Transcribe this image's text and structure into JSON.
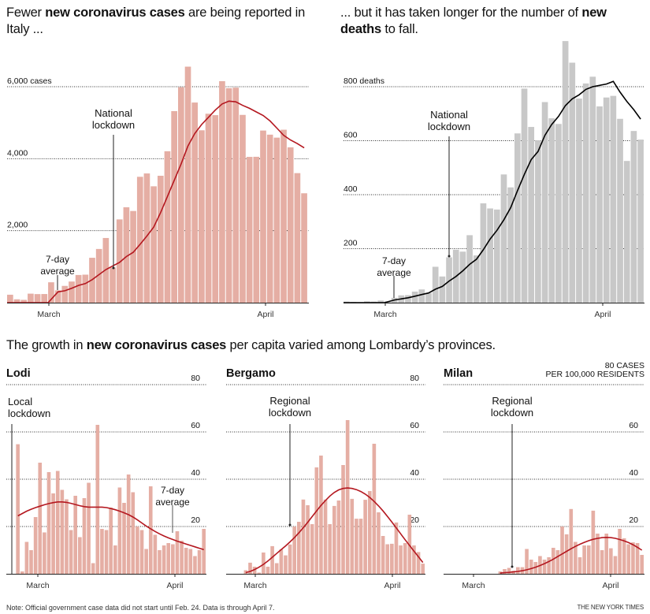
{
  "headline_top_left": {
    "pre": "Fewer ",
    "bold": "new coronavirus cases",
    "post": " are being reported in Italy ..."
  },
  "headline_top_right": {
    "pre": "... but it has taken longer for the number of ",
    "bold": "new deaths",
    "post": " to fall."
  },
  "headline_bottom": {
    "pre": "The growth in ",
    "bold": "new coronavirus cases",
    "post": " per capita varied among Lombardy’s provinces."
  },
  "note": "Note: Official government case data did not start until Feb. 24. Data is through April 7.",
  "credit": "THE NEW YORK TIMES",
  "colors": {
    "case_bar": "#e5aea4",
    "case_line": "#b4171f",
    "death_bar": "#c8c8c8",
    "death_line": "#000000",
    "grid": "#333333"
  },
  "chart_data": [
    {
      "id": "italy-cases",
      "type": "bar",
      "title": "Fewer new coronavirus cases are being reported in Italy ...",
      "xlabel": "",
      "ylabel": "cases",
      "start_date": "Feb 24",
      "end_date": "Apr 7",
      "ylim": [
        0,
        6600
      ],
      "yticks": [
        {
          "value": 2000,
          "label": "2,000"
        },
        {
          "value": 4000,
          "label": "4,000"
        },
        {
          "value": 6000,
          "label": "6,000 cases"
        }
      ],
      "xticks": [
        {
          "day": 6,
          "label": "March"
        },
        {
          "day": 37,
          "label": "April"
        }
      ],
      "values": [
        221,
        93,
        78,
        250,
        238,
        240,
        566,
        342,
        466,
        587,
        769,
        778,
        1247,
        1492,
        1797,
        977,
        2313,
        2651,
        2547,
        3497,
        3590,
        3233,
        3526,
        4207,
        5322,
        5986,
        6557,
        5560,
        4789,
        5249,
        5210,
        6153,
        5959,
        5974,
        5217,
        4050,
        4053,
        4782,
        4668,
        4585,
        4805,
        4316,
        3599,
        3039
      ],
      "series": [
        {
          "name": "7-day average",
          "values": [
            0,
            0,
            0,
            0,
            0,
            0,
            0,
            300,
            330,
            400,
            480,
            530,
            640,
            780,
            920,
            1020,
            1120,
            1280,
            1400,
            1620,
            1850,
            2100,
            2500,
            2950,
            3400,
            3850,
            4350,
            4700,
            4950,
            5150,
            5350,
            5520,
            5600,
            5580,
            5480,
            5400,
            5300,
            5200,
            5050,
            4850,
            4650,
            4520,
            4420,
            4300
          ]
        }
      ],
      "annotations": [
        {
          "label": "National lockdown",
          "day": 15
        },
        {
          "label": "7-day average",
          "day": 7
        }
      ]
    },
    {
      "id": "italy-deaths",
      "type": "bar",
      "title": "... but it has taken longer for the number of new deaths to fall.",
      "xlabel": "",
      "ylabel": "deaths",
      "start_date": "Feb 24",
      "end_date": "Apr 7",
      "ylim": [
        0,
        980
      ],
      "yticks": [
        {
          "value": 200,
          "label": "200"
        },
        {
          "value": 400,
          "label": "400"
        },
        {
          "value": 600,
          "label": "600"
        },
        {
          "value": 800,
          "label": "800 deaths"
        }
      ],
      "xticks": [
        {
          "day": 6,
          "label": "March"
        },
        {
          "day": 37,
          "label": "April"
        }
      ],
      "values": [
        4,
        3,
        2,
        5,
        4,
        8,
        5,
        18,
        27,
        28,
        41,
        49,
        36,
        133,
        97,
        168,
        196,
        189,
        250,
        175,
        368,
        349,
        345,
        475,
        427,
        627,
        793,
        651,
        601,
        743,
        683,
        662,
        969,
        889,
        756,
        812,
        837,
        727,
        760,
        766,
        681,
        525,
        636,
        604
      ],
      "series": [
        {
          "name": "7-day average",
          "values": [
            0,
            0,
            0,
            0,
            0,
            0,
            3,
            10,
            14,
            18,
            24,
            30,
            36,
            50,
            60,
            80,
            97,
            118,
            142,
            161,
            196,
            236,
            268,
            307,
            352,
            415,
            475,
            530,
            560,
            620,
            660,
            690,
            730,
            755,
            770,
            790,
            800,
            805,
            810,
            820,
            780,
            745,
            715,
            680
          ]
        }
      ],
      "annotations": [
        {
          "label": "National lockdown",
          "day": 15
        },
        {
          "label": "7-day average",
          "day": 7
        }
      ]
    },
    {
      "id": "lodi",
      "type": "bar",
      "title": "Lodi",
      "ylabel": "cases per 100,000 residents",
      "end_date": "Apr 7",
      "ylim": [
        0,
        80
      ],
      "yticks": [
        {
          "value": 20,
          "label": "20"
        },
        {
          "value": 40,
          "label": "40"
        },
        {
          "value": 60,
          "label": "60"
        },
        {
          "value": 80,
          "label": "80"
        }
      ],
      "xticks": [
        {
          "label": "March"
        },
        {
          "label": "April"
        }
      ],
      "values": [
        54.8,
        1,
        13.5,
        10,
        24,
        47,
        17.5,
        43,
        34,
        43.5,
        35.5,
        31.5,
        18.5,
        33,
        15.5,
        32,
        38.5,
        4.5,
        63,
        19,
        18.5,
        28,
        12,
        36.5,
        30,
        42,
        34.5,
        20,
        18.5,
        10.5,
        37,
        16.5,
        10,
        12,
        13,
        12.5,
        18,
        14,
        11,
        10.5,
        7.5,
        10,
        19
      ],
      "series": [
        {
          "name": "7-day average",
          "values": [
            24.5,
            25.5,
            26.5,
            27.3,
            28,
            28.6,
            29.2,
            29.7,
            30.1,
            30.4,
            30.4,
            30.2,
            29.8,
            29.3,
            28.8,
            28.4,
            28.2,
            28.2,
            28.2,
            28.2,
            28,
            27.6,
            27.1,
            26.5,
            25.8,
            25,
            24,
            22.8,
            21.5,
            20.2,
            19,
            17.9,
            16.9,
            16,
            15.2,
            14.5,
            13.8,
            13.2,
            12.6,
            12,
            11.4,
            10.8,
            10.2
          ]
        }
      ],
      "annotations": [
        {
          "label": "Local lockdown",
          "day": -1
        },
        {
          "label": "7-day average"
        }
      ]
    },
    {
      "id": "bergamo",
      "type": "bar",
      "title": "Bergamo",
      "ylabel": "cases per 100,000 residents",
      "end_date": "Apr 7",
      "ylim": [
        0,
        80
      ],
      "yticks": [
        {
          "value": 20,
          "label": "20"
        },
        {
          "value": 40,
          "label": "40"
        },
        {
          "value": 60,
          "label": "60"
        },
        {
          "value": 80,
          "label": "80"
        }
      ],
      "xticks": [
        {
          "label": "March"
        },
        {
          "label": "April"
        }
      ],
      "values": [
        1.5,
        4.7,
        3,
        0.5,
        9,
        3,
        11.7,
        4.5,
        10.3,
        7.8,
        12.4,
        20,
        22,
        31.4,
        29,
        21,
        45,
        50,
        31.4,
        21,
        28.7,
        31,
        46,
        65,
        31.7,
        23.3,
        23.3,
        31.3,
        35,
        55,
        26,
        16,
        12.5,
        12.7,
        21.7,
        12,
        13,
        25,
        12,
        9.2,
        4.3
      ],
      "series": [
        {
          "name": "7-day average",
          "values": [
            0.5,
            1,
            1.8,
            2.8,
            4,
            5.4,
            7,
            8.6,
            10.2,
            11.8,
            13.5,
            15.3,
            17.3,
            19.5,
            21.8,
            24.2,
            26.6,
            28.9,
            31,
            32.9,
            34.4,
            35.5,
            36.1,
            36.3,
            36.1,
            35.6,
            34.8,
            33.7,
            32.3,
            30.6,
            28.7,
            26.6,
            24.3,
            21.9,
            19.4,
            16.9,
            14.4,
            12,
            9.6,
            7.2,
            4.8
          ]
        }
      ],
      "annotations": [
        {
          "label": "Regional lockdown",
          "day": 12
        }
      ]
    },
    {
      "id": "milan",
      "type": "bar",
      "title": "Milan",
      "ylabel": "80 CASES PER 100,000 RESIDENTS",
      "end_date": "Apr 7",
      "ylim": [
        0,
        80
      ],
      "yticks": [
        {
          "value": 20,
          "label": "20"
        },
        {
          "value": 40,
          "label": "40"
        },
        {
          "value": 60,
          "label": "60"
        },
        {
          "value": 80,
          "label": "80 CASES"
        }
      ],
      "xticks": [
        {
          "label": "March"
        },
        {
          "label": "April"
        }
      ],
      "values": [
        1,
        2,
        2.5,
        1.3,
        2.8,
        2.8,
        10.5,
        6,
        5,
        7.5,
        6,
        7,
        11,
        10,
        20,
        16.7,
        27.4,
        13.5,
        7,
        12,
        12,
        26.7,
        17,
        10,
        17,
        10.8,
        7.5,
        19,
        15,
        12.5,
        13.3,
        13,
        8
      ],
      "series": [
        {
          "name": "7-day average",
          "values": [
            0.3,
            0.5,
            0.6,
            0.8,
            1,
            1.3,
            1.7,
            2.2,
            2.8,
            3.5,
            4.3,
            5.2,
            6.2,
            7.3,
            8.4,
            9.5,
            10.6,
            11.6,
            12.5,
            13.3,
            14,
            14.6,
            15,
            15.3,
            15.4,
            15.3,
            15,
            14.5,
            13.9,
            13.2,
            12.3,
            11.2,
            10
          ]
        }
      ],
      "annotations": [
        {
          "label": "Regional lockdown",
          "day": 13
        }
      ]
    }
  ],
  "labels": {
    "cases_lockdown": [
      "National",
      "lockdown"
    ],
    "deaths_lockdown": [
      "National",
      "lockdown"
    ],
    "avg": [
      "7-day",
      "average"
    ],
    "lodi_lockdown": [
      "Local",
      "lockdown"
    ],
    "bergamo_lockdown": [
      "Regional",
      "lockdown"
    ],
    "milan_lockdown": [
      "Regional",
      "lockdown"
    ],
    "milan_unit": [
      "80 CASES",
      "PER 100,000 RESIDENTS"
    ]
  }
}
